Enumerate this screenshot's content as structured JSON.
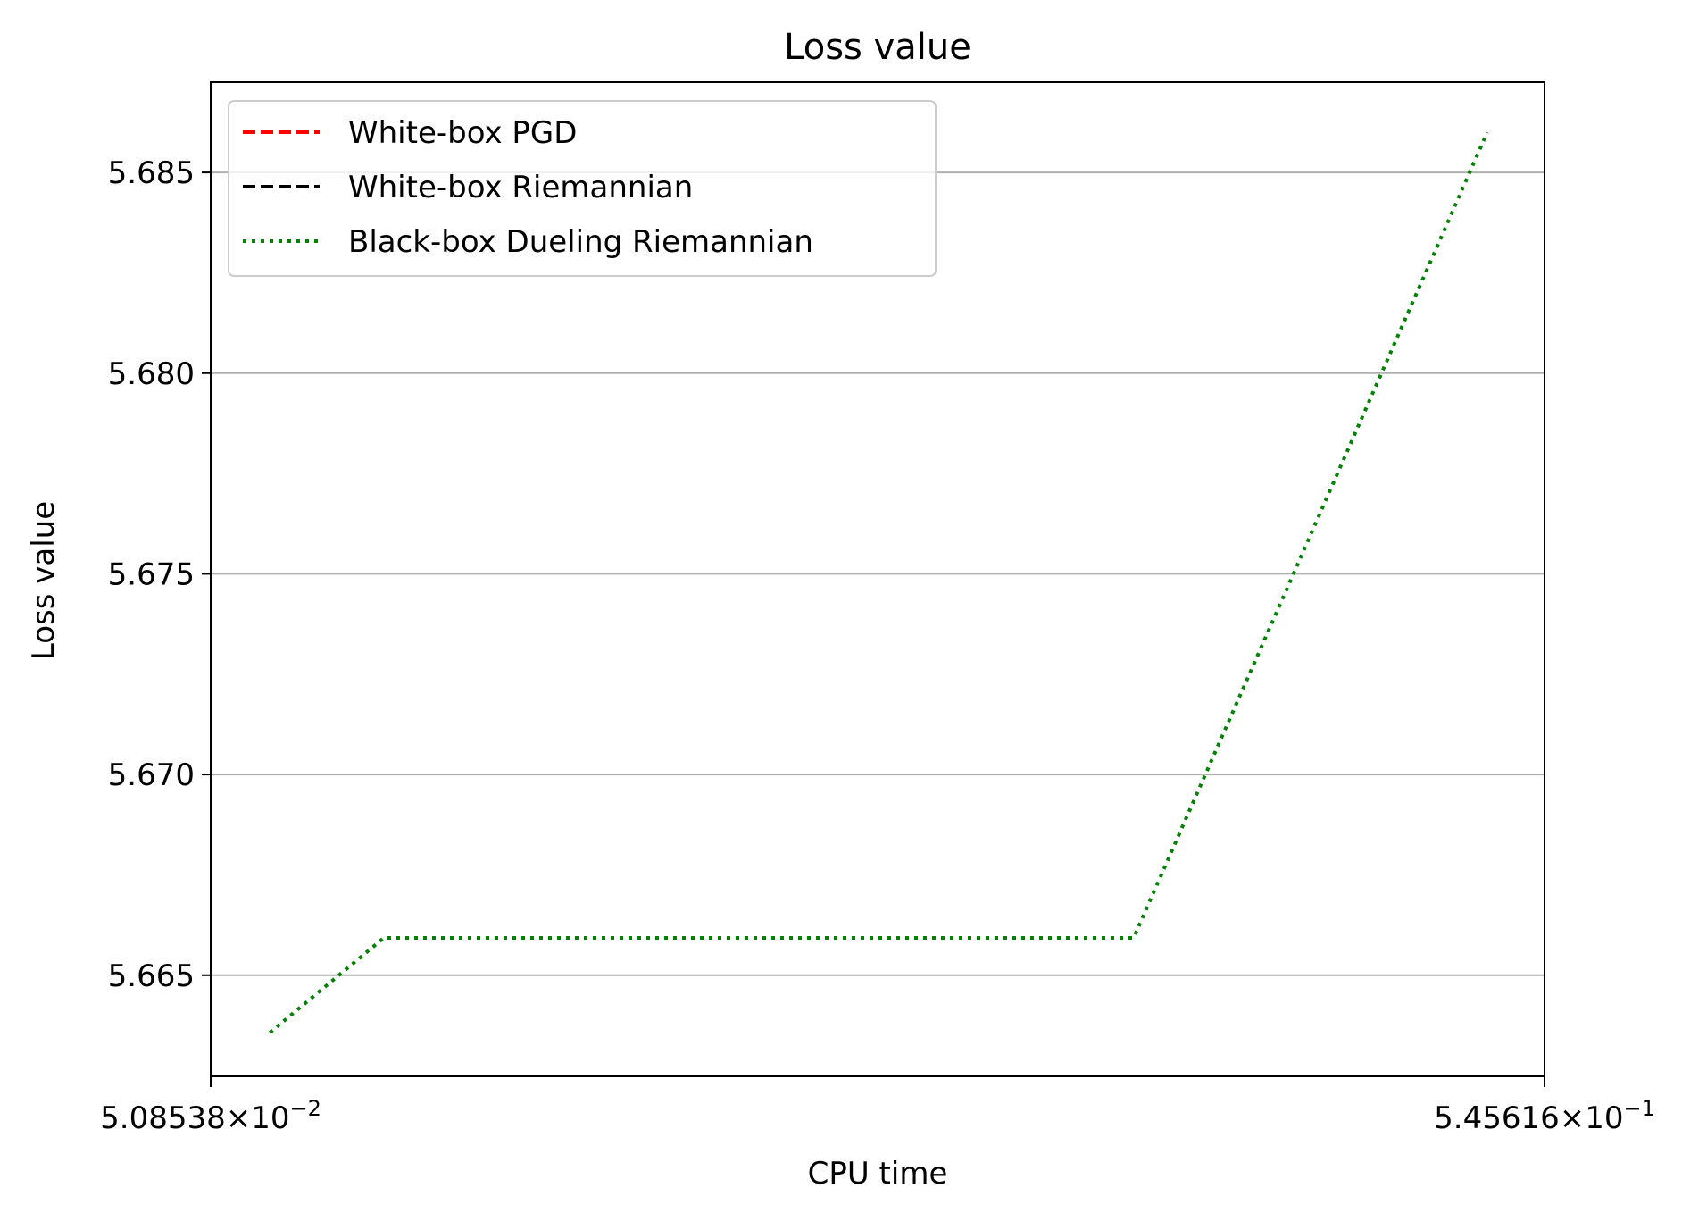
{
  "chart_data": {
    "type": "line",
    "title": "Loss value",
    "xlabel": "CPU time",
    "ylabel": "Loss value",
    "xscale": "log",
    "xlim": [
      0.0508538,
      0.545616
    ],
    "ylim": [
      5.66248,
      5.68725
    ],
    "x_ticks": [
      {
        "value": 0.0508538,
        "mantissa": "5.08538",
        "exponent": "−2"
      },
      {
        "value": 0.545616,
        "mantissa": "5.45616",
        "exponent": "−1"
      }
    ],
    "y_ticks": [
      "5.665",
      "5.670",
      "5.675",
      "5.680",
      "5.685"
    ],
    "grid": "y",
    "legend_position": "upper-left",
    "series": [
      {
        "name": "White-box PGD",
        "color": "#ff0000",
        "style": "dashed",
        "x": [],
        "y": []
      },
      {
        "name": "White-box Riemannian",
        "color": "#000000",
        "style": "dashed",
        "x": [],
        "y": []
      },
      {
        "name": "Black-box Dueling Riemannian",
        "color": "#008000",
        "style": "dotted",
        "x": [
          0.0565,
          0.0692,
          0.2627,
          0.4927
        ],
        "y": [
          5.66357,
          5.66593,
          5.66593,
          5.686
        ]
      }
    ]
  }
}
